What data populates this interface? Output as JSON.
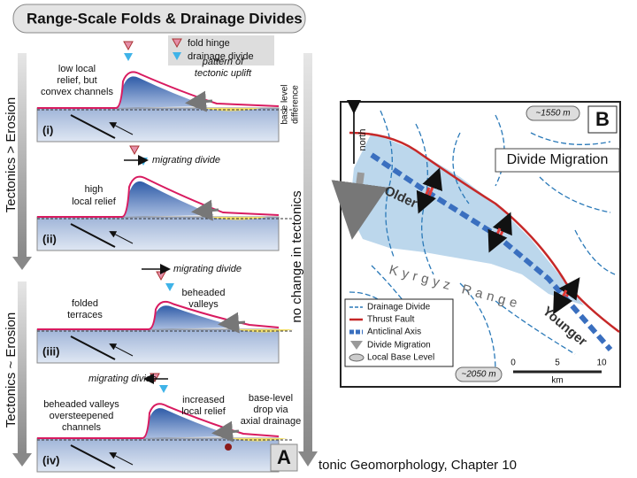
{
  "panel_a": {
    "title": "Range-Scale Folds & Drainage Divides",
    "label": "A",
    "legend": [
      "fold hinge",
      "drainage divide"
    ],
    "side_labels": [
      "Tectonics > Erosion",
      "Tectonics ~ Erosion",
      "no change in tectonics"
    ],
    "stages": [
      {
        "label": "(i)",
        "notes": [
          [
            "low local",
            "relief, but",
            "convex channels"
          ],
          [
            "pattern of",
            "tectonic uplift"
          ],
          [
            "base level",
            "difference"
          ]
        ]
      },
      {
        "label": "(ii)",
        "notes": [
          [
            "migrating divide"
          ],
          [
            "high",
            "local relief"
          ]
        ]
      },
      {
        "label": "(iii)",
        "notes": [
          [
            "migrating divide"
          ],
          [
            "folded",
            "terraces"
          ],
          [
            "beheaded",
            "valleys"
          ]
        ]
      },
      {
        "label": "(iv)",
        "notes": [
          [
            "migrating divide"
          ],
          [
            "beheaded valleys",
            "oversteepened",
            "channels"
          ],
          [
            "increased",
            "local relief"
          ],
          [
            "base-level",
            "drop via",
            "axial drainage"
          ]
        ]
      }
    ]
  },
  "panel_b": {
    "label": "B",
    "title": "Divide Migration",
    "north": "north",
    "elevation_top": "~1550 m",
    "elevation_bottom": "~2050 m",
    "map_labels": [
      "Older",
      "Kyrgyz Range",
      "Younger"
    ],
    "legend": [
      "Drainage Divide",
      "Thrust Fault",
      "Anticlinal Axis",
      "Divide Migration",
      "Local Base Level"
    ],
    "scale": {
      "ticks": [
        "0",
        "5",
        "10"
      ],
      "unit": "km"
    }
  },
  "footer": "tonic Geomorphology, Chapter 10"
}
